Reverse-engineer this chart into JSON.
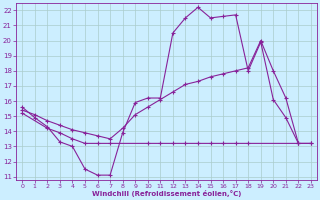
{
  "xlabel": "Windchill (Refroidissement éolien,°C)",
  "xlim_min": -0.5,
  "xlim_max": 23.5,
  "ylim_min": 10.8,
  "ylim_max": 22.5,
  "xticks": [
    0,
    1,
    2,
    3,
    4,
    5,
    6,
    7,
    8,
    9,
    10,
    11,
    12,
    13,
    14,
    15,
    16,
    17,
    18,
    19,
    20,
    21,
    22,
    23
  ],
  "yticks": [
    11,
    12,
    13,
    14,
    15,
    16,
    17,
    18,
    19,
    20,
    21,
    22
  ],
  "bg_color": "#cceeff",
  "grid_color": "#aacccc",
  "line_color": "#882299",
  "line1_x": [
    0,
    1,
    2,
    3,
    4,
    5,
    6,
    7,
    8,
    9,
    10,
    11,
    12,
    13,
    14,
    15,
    16,
    17,
    18,
    19,
    20,
    21,
    22
  ],
  "line1_y": [
    15.6,
    14.9,
    14.3,
    13.3,
    13.0,
    11.5,
    11.1,
    11.1,
    13.9,
    15.9,
    16.2,
    16.2,
    20.5,
    21.5,
    22.2,
    21.5,
    21.6,
    21.7,
    18.0,
    19.9,
    16.1,
    14.9,
    13.2
  ],
  "line2_x": [
    0,
    2,
    3,
    4,
    5,
    6,
    7,
    10,
    11,
    12,
    13,
    14,
    15,
    16,
    17,
    18,
    22,
    23
  ],
  "line2_y": [
    15.2,
    14.2,
    13.9,
    13.5,
    13.2,
    13.2,
    13.2,
    13.2,
    13.2,
    13.2,
    13.2,
    13.2,
    13.2,
    13.2,
    13.2,
    13.2,
    13.2,
    13.2
  ],
  "line3_x": [
    0,
    1,
    2,
    3,
    4,
    5,
    6,
    7,
    8,
    9,
    10,
    11,
    12,
    13,
    14,
    15,
    16,
    17,
    18,
    19,
    20,
    21,
    22,
    23
  ],
  "line3_y": [
    15.4,
    15.1,
    14.7,
    14.4,
    14.1,
    13.9,
    13.7,
    13.5,
    14.2,
    15.1,
    15.6,
    16.1,
    16.6,
    17.1,
    17.3,
    17.6,
    17.8,
    18.0,
    18.2,
    20.0,
    18.0,
    16.2,
    13.2,
    13.2
  ]
}
